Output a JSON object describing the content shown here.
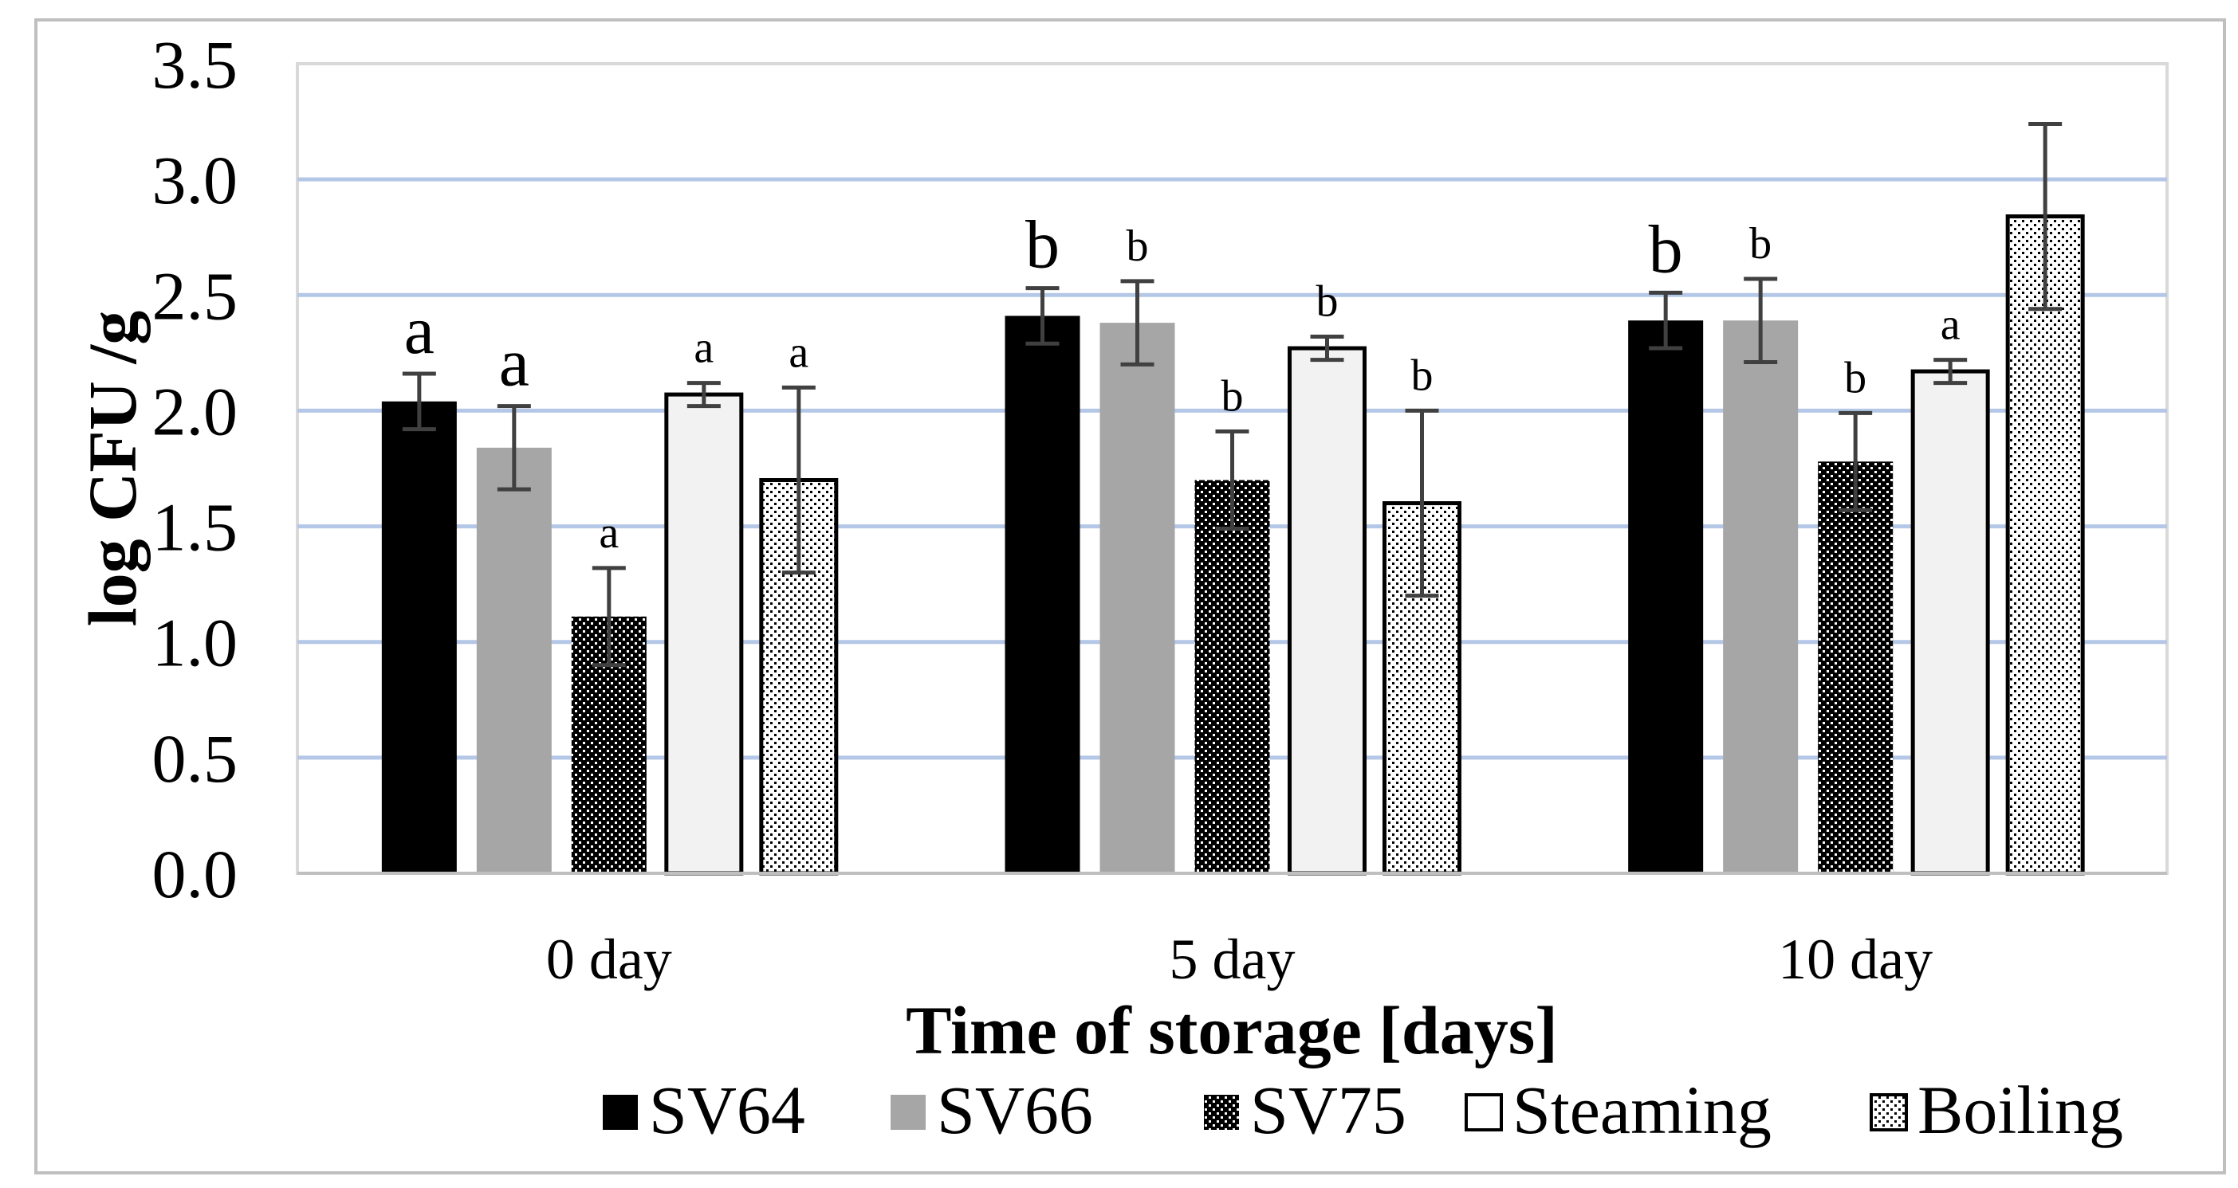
{
  "chart_data": {
    "type": "bar",
    "title": "",
    "xlabel": "Time of storage [days]",
    "ylabel": "log CFU /g",
    "ylim": [
      0,
      3.5
    ],
    "yticks": [
      "0.0",
      "0.5",
      "1.0",
      "1.5",
      "2.0",
      "2.5",
      "3.0",
      "3.5"
    ],
    "grid": true,
    "legend_position": "bottom",
    "categories": [
      "0 day",
      "5 day",
      "10 day"
    ],
    "series": [
      {
        "name": "SV64",
        "fill": "#000000",
        "pattern": "solid",
        "values": [
          2.04,
          2.41,
          2.39
        ],
        "errors": [
          0.12,
          0.12,
          0.12
        ],
        "labels": [
          "a",
          "b",
          "b"
        ]
      },
      {
        "name": "SV66",
        "fill": "#a6a6a6",
        "pattern": "solid",
        "values": [
          1.84,
          2.38,
          2.39
        ],
        "errors": [
          0.18,
          0.18,
          0.18
        ],
        "labels": [
          "a",
          "b",
          "b"
        ]
      },
      {
        "name": "SV75",
        "fill": "#000000",
        "pattern": "dense-dots",
        "values": [
          1.11,
          1.7,
          1.78
        ],
        "errors": [
          0.21,
          0.21,
          0.21
        ],
        "labels": [
          "a",
          "b",
          "b"
        ]
      },
      {
        "name": "Steaming",
        "fill": "#f2f2f2",
        "pattern": "outline",
        "values": [
          2.07,
          2.27,
          2.17
        ],
        "errors": [
          0.05,
          0.05,
          0.05
        ],
        "labels": [
          "a",
          "b",
          "a"
        ]
      },
      {
        "name": "Boiling",
        "fill": "#ffffff",
        "pattern": "sparse-dots",
        "values": [
          1.7,
          1.6,
          2.84
        ],
        "errors": [
          0.4,
          0.4,
          0.4
        ],
        "labels": [
          "a",
          "b",
          ""
        ]
      }
    ]
  }
}
